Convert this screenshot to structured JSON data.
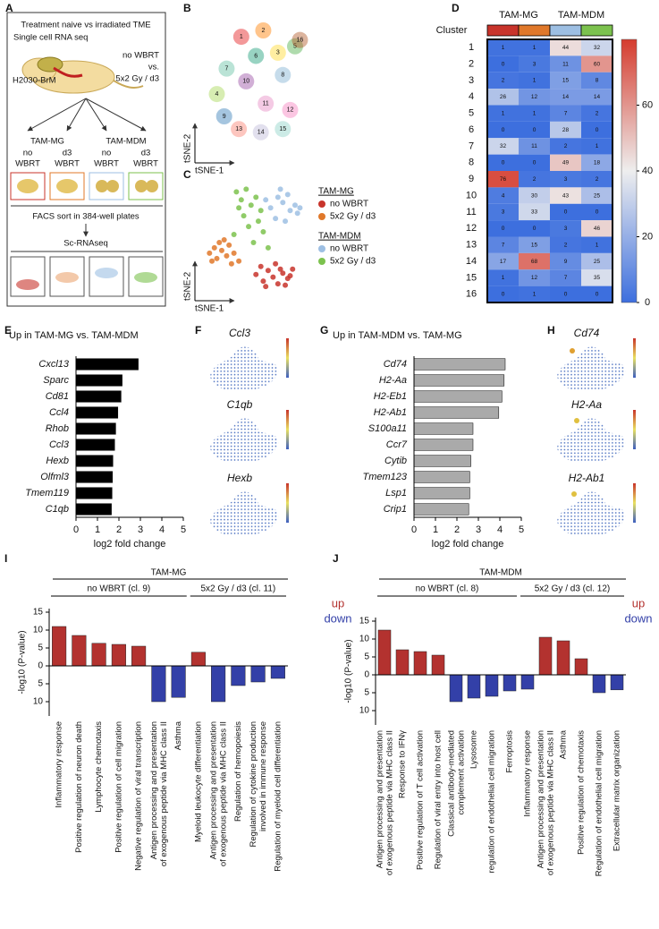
{
  "panel_labels": [
    "A",
    "B",
    "C",
    "D",
    "E",
    "F",
    "G",
    "H",
    "I",
    "J"
  ],
  "schematic": {
    "title": "Treatment naive vs irradiated TME",
    "subtitle": "Single cell RNA seq",
    "model": "H2030-BrM",
    "arm1": "no WBRT",
    "vs": "vs.",
    "arm2": "5x2 Gy / d3",
    "groups": [
      "TAM-MG",
      "TAM-MDM"
    ],
    "conditions": [
      [
        "no",
        "WBRT"
      ],
      [
        "d3",
        "WBRT"
      ],
      [
        "no",
        "WBRT"
      ],
      [
        "d3",
        "WBRT"
      ]
    ],
    "sort": "FACS sort in 384-well plates",
    "method": "Sc-RNAseq"
  },
  "feature_plots": {
    "F": [
      "Ccl3",
      "C1qb",
      "Hexb"
    ],
    "H": [
      "Cd74",
      "H2-Aa",
      "H2-Ab1"
    ]
  },
  "chart_data": [
    {
      "type": "scatter",
      "xlabel": "tSNE-1",
      "ylabel": "tSNE-2",
      "xlim": [
        -45,
        45
      ],
      "ylim": [
        -45,
        45
      ],
      "x": [
        -10,
        8,
        20,
        -30,
        34,
        2,
        -22,
        24,
        -24,
        -6,
        10,
        30,
        -12,
        6,
        24,
        38
      ],
      "y": [
        32,
        36,
        22,
        -4,
        26,
        20,
        12,
        8,
        -18,
        4,
        -10,
        -14,
        -26,
        -28,
        -26,
        30
      ],
      "labels": [
        1,
        2,
        3,
        4,
        5,
        6,
        7,
        8,
        9,
        10,
        11,
        12,
        13,
        14,
        15,
        16
      ],
      "colors": [
        "#e41a1c",
        "#ff7f00",
        "#ffd92f",
        "#a6d854",
        "#4daf4a",
        "#1b9e77",
        "#66c2a5",
        "#80b1d3",
        "#377eb8",
        "#984ea3",
        "#e78ac3",
        "#f781bf",
        "#fb8072",
        "#bebada",
        "#8dd3c7",
        "#b15928"
      ]
    },
    {
      "type": "scatter",
      "xlabel": "tSNE-1",
      "ylabel": "tSNE-2",
      "xlim": [
        -45,
        45
      ],
      "ylim": [
        -45,
        45
      ],
      "series": [
        {
          "name": "no WBRT",
          "color": "#c8342b",
          "x": [
            2,
            8,
            12,
            16,
            20,
            24,
            28,
            32,
            6,
            18,
            26,
            30,
            10,
            22
          ],
          "y": [
            -28,
            -33,
            -25,
            -30,
            -35,
            -27,
            -31,
            -24,
            -22,
            -20,
            -36,
            -29,
            -37,
            -24
          ]
        },
        {
          "name": "5x2 Gy / d3",
          "color": "#e0782a",
          "x": [
            -36,
            -32,
            -30,
            -26,
            -22,
            -20,
            -16,
            -12,
            -28,
            -34,
            -18,
            -24
          ],
          "y": [
            -12,
            -8,
            -16,
            -10,
            -14,
            -6,
            -12,
            -18,
            -4,
            -18,
            -20,
            -2
          ]
        },
        {
          "name": "no WBRT",
          "color": "#9dbfe3",
          "x": [
            20,
            24,
            28,
            14,
            30,
            36,
            34,
            18,
            10,
            38,
            26,
            22
          ],
          "y": [
            30,
            26,
            32,
            22,
            20,
            18,
            24,
            14,
            28,
            22,
            12,
            36
          ]
        },
        {
          "name": "5x2 Gy / d3",
          "color": "#7cc24e",
          "x": [
            -14,
            -10,
            -6,
            -2,
            2,
            -8,
            -4,
            4,
            8,
            0,
            -12,
            6,
            -16,
            12
          ],
          "y": [
            34,
            28,
            36,
            24,
            30,
            16,
            8,
            12,
            4,
            -4,
            22,
            20,
            2,
            -8
          ]
        }
      ],
      "legend_groups": [
        {
          "label": "TAM-MG",
          "series": [
            0,
            1
          ]
        },
        {
          "label": "TAM-MDM",
          "series": [
            2,
            3
          ]
        }
      ]
    },
    {
      "type": "heatmap",
      "row_label": "Cluster",
      "categories": [
        1,
        2,
        3,
        4,
        5,
        6,
        7,
        8,
        9,
        10,
        11,
        12,
        13,
        14,
        15,
        16
      ],
      "column_colors": [
        "#c8342b",
        "#e0782a",
        "#9dbfe3",
        "#7cc24e"
      ],
      "column_groups": [
        {
          "label": "TAM-MG",
          "span": [
            0,
            1
          ]
        },
        {
          "label": "TAM-MDM",
          "span": [
            2,
            3
          ]
        }
      ],
      "values": [
        [
          1,
          1,
          44,
          32
        ],
        [
          0,
          3,
          11,
          60
        ],
        [
          2,
          1,
          15,
          8
        ],
        [
          26,
          12,
          14,
          14
        ],
        [
          1,
          1,
          7,
          2
        ],
        [
          0,
          0,
          28,
          0
        ],
        [
          32,
          11,
          2,
          1
        ],
        [
          0,
          0,
          49,
          18
        ],
        [
          76,
          2,
          3,
          2
        ],
        [
          4,
          30,
          43,
          25
        ],
        [
          3,
          33,
          0,
          0
        ],
        [
          0,
          0,
          3,
          46
        ],
        [
          7,
          15,
          2,
          1
        ],
        [
          17,
          68,
          9,
          25
        ],
        [
          1,
          12,
          7,
          35
        ],
        [
          0,
          1,
          0,
          0
        ]
      ],
      "colormap": [
        "#3d6fde",
        "#eeeeee",
        "#d53c2e"
      ],
      "zlim": [
        0,
        80
      ],
      "zticks": [
        0,
        20,
        40,
        60
      ]
    },
    {
      "type": "bar",
      "orientation": "horizontal",
      "title": "Up in TAM-MG vs. TAM-MDM",
      "xlabel": "log2 fold change",
      "categories": [
        "Cxcl13",
        "Sparc",
        "Cd81",
        "Ccl4",
        "Rhob",
        "Ccl3",
        "Hexb",
        "Olfml3",
        "Tmem119",
        "C1qb"
      ],
      "values": [
        2.9,
        2.15,
        2.1,
        1.95,
        1.85,
        1.8,
        1.72,
        1.7,
        1.68,
        1.65
      ],
      "color": "#000000",
      "xlim": [
        0,
        5
      ],
      "xticks": [
        0,
        1,
        2,
        3,
        4,
        5
      ]
    },
    {
      "type": "bar",
      "orientation": "horizontal",
      "title": "Up in TAM-MDM vs. TAM-MG",
      "xlabel": "log2 fold change",
      "categories": [
        "Cd74",
        "H2-Aa",
        "H2-Eb1",
        "H2-Ab1",
        "S100a11",
        "Ccr7",
        "Cytib",
        "Tmem123",
        "Lsp1",
        "Crip1"
      ],
      "values": [
        4.25,
        4.2,
        4.1,
        3.95,
        2.75,
        2.75,
        2.65,
        2.6,
        2.6,
        2.55
      ],
      "color": "#aaaaaa",
      "xlim": [
        0,
        5
      ],
      "xticks": [
        0,
        1,
        2,
        3,
        4,
        5
      ]
    },
    {
      "type": "bar",
      "orientation": "vertical",
      "title": "TAM-MG",
      "ylabel": "-log10 (P-value)",
      "categories": [
        "Inflammatory response",
        "Positive regulation of neuron death",
        "Lymphocyte chemotaxis",
        "Positive regulation of cell migration",
        "Negative regulation of viral transcription",
        "Antigen processing and presentation\nof exogenous peptide via MHC class II",
        "Asthma",
        "Myeloid leukocyte differentiation",
        "Antigen processing and presentation\nof exogenous peptide via MHC class II",
        "Regulation of hemopoiesis",
        "Regulation of cytokine production\ninvolved in immune response",
        "Regulation of myeloid cell differentiation"
      ],
      "values": [
        11,
        8.5,
        6.3,
        6,
        5.5,
        -10,
        -8.8,
        3.8,
        -10,
        -5.5,
        -4.5,
        -3.5
      ],
      "groups": [
        {
          "label": "no WBRT (cl. 9)",
          "span": [
            0,
            6
          ]
        },
        {
          "label": "5x2 Gy / d3 (cl. 11)",
          "span": [
            7,
            11
          ]
        }
      ],
      "legend": [
        {
          "label": "up",
          "color": "#b3322f"
        },
        {
          "label": "down",
          "color": "#3340a8"
        }
      ],
      "ylim": [
        -14,
        16
      ],
      "yticks": [
        15,
        10,
        5,
        0,
        {
          "value": -5,
          "label": "5"
        },
        {
          "value": -10,
          "label": "10"
        }
      ]
    },
    {
      "type": "bar",
      "orientation": "vertical",
      "title": "TAM-MDM",
      "ylabel": "-log10 (P-value)",
      "categories": [
        "Antigen processing and presentation\nof exogenous peptide via MHC class II",
        "Response to IFNγ",
        "Positive regulation of T cell activation",
        "Regulation of viral entry into host cell",
        "Classical antibody-mediated\ncomplement activation",
        "Lysosome",
        "regulation of endothelial cell migration",
        "Ferroptosis",
        "Inflammatory response",
        "Antigen processing and presentation\nof exogenous peptide via MHC class II",
        "Asthma",
        "Positive regulation of chemotaxis",
        "Regulation of endothelial cell migration",
        "Extracellular matrix organization"
      ],
      "values": [
        12.5,
        7,
        6.5,
        5.5,
        -7.5,
        -6.5,
        -6,
        -4.5,
        -4,
        10.5,
        9.5,
        4.5,
        -5,
        -4.2
      ],
      "groups": [
        {
          "label": "no WBRT (cl. 8)",
          "span": [
            0,
            7
          ]
        },
        {
          "label": "5x2 Gy / d3 (cl. 12)",
          "span": [
            8,
            13
          ]
        }
      ],
      "legend": [
        {
          "label": "up",
          "color": "#b3322f"
        },
        {
          "label": "down",
          "color": "#3340a8"
        }
      ],
      "ylim": [
        -14,
        16
      ],
      "yticks": [
        15,
        10,
        5,
        0,
        {
          "value": -5,
          "label": "5"
        },
        {
          "value": -10,
          "label": "10"
        }
      ]
    }
  ]
}
